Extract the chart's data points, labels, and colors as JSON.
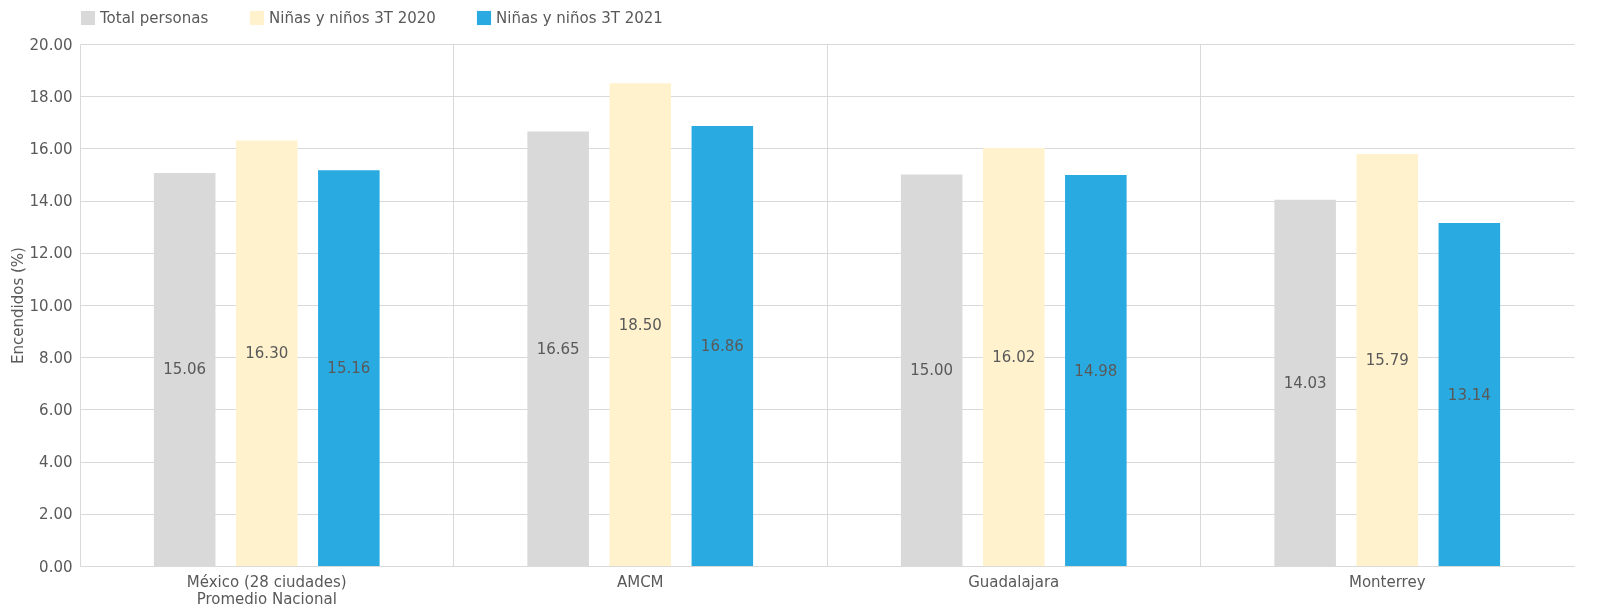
{
  "chart_data": {
    "type": "bar",
    "ylabel": "Encendidos (%)",
    "categories": [
      "México (28 ciudades)\nPromedio Nacional",
      "AMCM",
      "Guadalajara",
      "Monterrey"
    ],
    "series": [
      {
        "name": "Total personas",
        "color": "#d9d9d9",
        "values": [
          15.06,
          16.65,
          15.0,
          14.03
        ],
        "value_labels": [
          "15.06",
          "16.65",
          "15.00",
          "14.03"
        ]
      },
      {
        "name": "Niñas y niños 3T 2020",
        "color": "#fff2cc",
        "values": [
          16.3,
          18.5,
          16.02,
          15.79
        ],
        "value_labels": [
          "16.30",
          "18.50",
          "16.02",
          "15.79"
        ]
      },
      {
        "name": "Niñas y niños 3T 2021",
        "color": "#29abe2",
        "values": [
          15.16,
          16.86,
          14.98,
          13.14
        ],
        "value_labels": [
          "15.16",
          "16.86",
          "14.98",
          "13.14"
        ]
      }
    ],
    "ylim": [
      0,
      20
    ],
    "yticks": [
      {
        "value": 0,
        "label": "0.00"
      },
      {
        "value": 2,
        "label": "2.00"
      },
      {
        "value": 4,
        "label": "4.00"
      },
      {
        "value": 6,
        "label": "6.00"
      },
      {
        "value": 8,
        "label": "8.00"
      },
      {
        "value": 10,
        "label": "10.00"
      },
      {
        "value": 12,
        "label": "12.00"
      },
      {
        "value": 14,
        "label": "14.00"
      },
      {
        "value": 16,
        "label": "16.00"
      },
      {
        "value": 18,
        "label": "18.00"
      },
      {
        "value": 20,
        "label": "20.00"
      }
    ],
    "grid": true,
    "legend": "top"
  }
}
